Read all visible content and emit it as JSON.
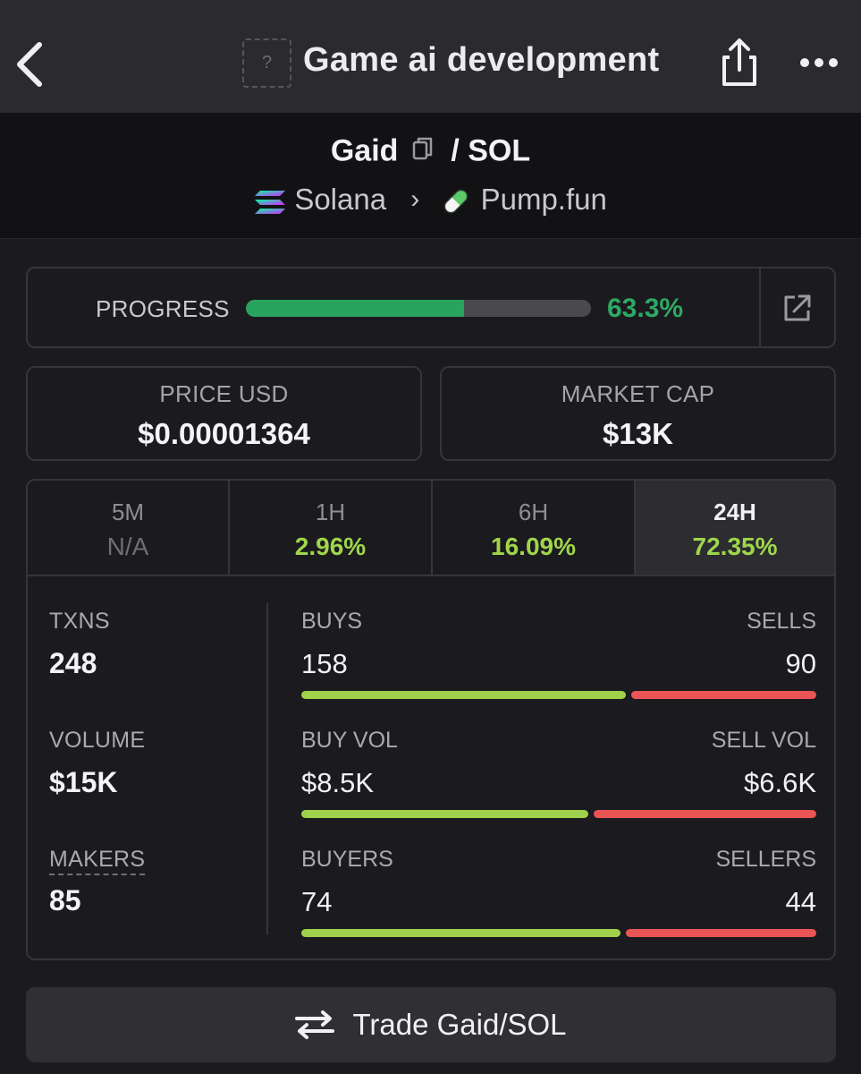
{
  "header": {
    "title": "Game ai development",
    "token_image_placeholder": "?"
  },
  "pair": {
    "base": "Gaid",
    "separator": "/",
    "quote": "SOL",
    "chain": "Solana",
    "dex": "Pump.fun"
  },
  "progress": {
    "label": "PROGRESS",
    "value_text": "63.3%",
    "percent": 63.3
  },
  "stats": {
    "price": {
      "label": "PRICE USD",
      "value": "$0.00001364"
    },
    "market_cap": {
      "label": "MARKET CAP",
      "value": "$13K"
    }
  },
  "timeframes": [
    {
      "label": "5M",
      "value": "N/A"
    },
    {
      "label": "1H",
      "value": "2.96%"
    },
    {
      "label": "6H",
      "value": "16.09%"
    },
    {
      "label": "24H",
      "value": "72.35%",
      "active": true
    }
  ],
  "metrics": {
    "txns": {
      "label": "TXNS",
      "value": "248"
    },
    "volume": {
      "label": "VOLUME",
      "value": "$15K"
    },
    "makers": {
      "label": "MAKERS",
      "value": "85"
    }
  },
  "ratios": {
    "buys_sells": {
      "left_label": "BUYS",
      "right_label": "SELLS",
      "left_value": "158",
      "right_value": "90",
      "left_num": 158,
      "right_num": 90
    },
    "vol": {
      "left_label": "BUY VOL",
      "right_label": "SELL VOL",
      "left_value": "$8.5K",
      "right_value": "$6.6K",
      "left_num": 8.5,
      "right_num": 6.6
    },
    "buyers_sellers": {
      "left_label": "BUYERS",
      "right_label": "SELLERS",
      "left_value": "74",
      "right_value": "44",
      "left_num": 74,
      "right_num": 44
    }
  },
  "trade_button": {
    "label": "Trade Gaid/SOL"
  },
  "colors": {
    "positive": "#9fd64a",
    "negative": "#ea5455",
    "progress": "#29a45e"
  },
  "icons": {
    "back": "chevron-left-icon",
    "share": "share-icon",
    "more": "more-horizontal-icon",
    "copy": "copy-icon",
    "chain": "solana-logo-icon",
    "dex": "pill-icon",
    "external": "external-link-icon",
    "trade": "swap-arrows-icon"
  }
}
